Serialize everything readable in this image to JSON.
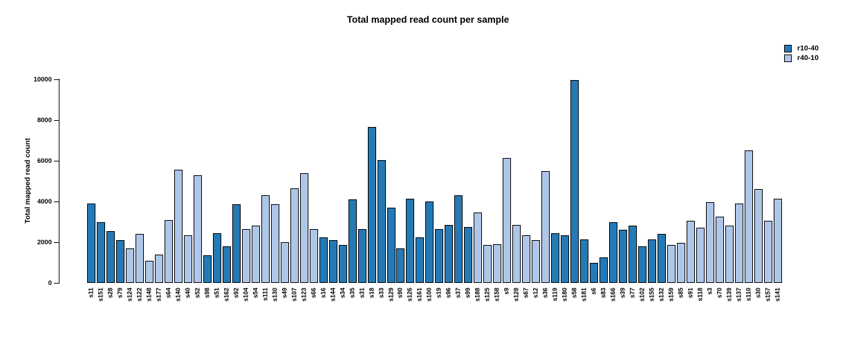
{
  "chart_data": {
    "type": "bar",
    "title": "Total mapped read count per sample",
    "xlabel": "",
    "ylabel": "Total mapped read count",
    "ylim": [
      0,
      10000
    ],
    "yticks": [
      0,
      2000,
      4000,
      6000,
      8000,
      10000
    ],
    "grid": false,
    "legend_position": "top-right",
    "series": [
      {
        "name": "r10-40",
        "color": "#2579b5"
      },
      {
        "name": "r40-10",
        "color": "#aec6e8"
      }
    ],
    "bars": [
      {
        "sample": "s11",
        "series": "r10-40",
        "value": 3900
      },
      {
        "sample": "s151",
        "series": "r10-40",
        "value": 3000
      },
      {
        "sample": "s28",
        "series": "r10-40",
        "value": 2550
      },
      {
        "sample": "s79",
        "series": "r10-40",
        "value": 2100
      },
      {
        "sample": "s124",
        "series": "r40-10",
        "value": 1700
      },
      {
        "sample": "s122",
        "series": "r40-10",
        "value": 2400
      },
      {
        "sample": "s148",
        "series": "r40-10",
        "value": 1100
      },
      {
        "sample": "s177",
        "series": "r40-10",
        "value": 1400
      },
      {
        "sample": "s64",
        "series": "r40-10",
        "value": 3100
      },
      {
        "sample": "s140",
        "series": "r40-10",
        "value": 5550
      },
      {
        "sample": "s40",
        "series": "r40-10",
        "value": 2350
      },
      {
        "sample": "s52",
        "series": "r40-10",
        "value": 5300
      },
      {
        "sample": "s98",
        "series": "r10-40",
        "value": 1350
      },
      {
        "sample": "s51",
        "series": "r10-40",
        "value": 2450
      },
      {
        "sample": "s162",
        "series": "r10-40",
        "value": 1800
      },
      {
        "sample": "s92",
        "series": "r10-40",
        "value": 3850
      },
      {
        "sample": "s104",
        "series": "r40-10",
        "value": 2650
      },
      {
        "sample": "s54",
        "series": "r40-10",
        "value": 2800
      },
      {
        "sample": "s111",
        "series": "r40-10",
        "value": 4300
      },
      {
        "sample": "s130",
        "series": "r40-10",
        "value": 3850
      },
      {
        "sample": "s49",
        "series": "r40-10",
        "value": 2000
      },
      {
        "sample": "s107",
        "series": "r40-10",
        "value": 4650
      },
      {
        "sample": "s123",
        "series": "r40-10",
        "value": 5400
      },
      {
        "sample": "s66",
        "series": "r40-10",
        "value": 2650
      },
      {
        "sample": "s16",
        "series": "r10-40",
        "value": 2250
      },
      {
        "sample": "s144",
        "series": "r10-40",
        "value": 2100
      },
      {
        "sample": "s34",
        "series": "r10-40",
        "value": 1850
      },
      {
        "sample": "s35",
        "series": "r10-40",
        "value": 4100
      },
      {
        "sample": "s31",
        "series": "r10-40",
        "value": 2650
      },
      {
        "sample": "s18",
        "series": "r10-40",
        "value": 7650
      },
      {
        "sample": "s33",
        "series": "r10-40",
        "value": 6050
      },
      {
        "sample": "s129",
        "series": "r10-40",
        "value": 3700
      },
      {
        "sample": "s90",
        "series": "r10-40",
        "value": 1700
      },
      {
        "sample": "s126",
        "series": "r10-40",
        "value": 4150
      },
      {
        "sample": "s161",
        "series": "r10-40",
        "value": 2250
      },
      {
        "sample": "s100",
        "series": "r10-40",
        "value": 4000
      },
      {
        "sample": "s19",
        "series": "r10-40",
        "value": 2650
      },
      {
        "sample": "s96",
        "series": "r10-40",
        "value": 2850
      },
      {
        "sample": "s37",
        "series": "r10-40",
        "value": 4300
      },
      {
        "sample": "s99",
        "series": "r10-40",
        "value": 2750
      },
      {
        "sample": "s188",
        "series": "r40-10",
        "value": 3450
      },
      {
        "sample": "s125",
        "series": "r40-10",
        "value": 1850
      },
      {
        "sample": "s158",
        "series": "r40-10",
        "value": 1900
      },
      {
        "sample": "s9",
        "series": "r40-10",
        "value": 6150
      },
      {
        "sample": "s128",
        "series": "r40-10",
        "value": 2850
      },
      {
        "sample": "s67",
        "series": "r40-10",
        "value": 2350
      },
      {
        "sample": "s12",
        "series": "r40-10",
        "value": 2100
      },
      {
        "sample": "s36",
        "series": "r40-10",
        "value": 5500
      },
      {
        "sample": "s119",
        "series": "r10-40",
        "value": 2450
      },
      {
        "sample": "s180",
        "series": "r10-40",
        "value": 2350
      },
      {
        "sample": "s58",
        "series": "r10-40",
        "value": 9950
      },
      {
        "sample": "s181",
        "series": "r10-40",
        "value": 2150
      },
      {
        "sample": "s6",
        "series": "r10-40",
        "value": 1000
      },
      {
        "sample": "s83",
        "series": "r10-40",
        "value": 1250
      },
      {
        "sample": "s166",
        "series": "r10-40",
        "value": 3000
      },
      {
        "sample": "s39",
        "series": "r10-40",
        "value": 2600
      },
      {
        "sample": "s77",
        "series": "r10-40",
        "value": 2800
      },
      {
        "sample": "s102",
        "series": "r10-40",
        "value": 1800
      },
      {
        "sample": "s155",
        "series": "r10-40",
        "value": 2150
      },
      {
        "sample": "s132",
        "series": "r10-40",
        "value": 2400
      },
      {
        "sample": "s159",
        "series": "r40-10",
        "value": 1850
      },
      {
        "sample": "s85",
        "series": "r40-10",
        "value": 1950
      },
      {
        "sample": "s91",
        "series": "r40-10",
        "value": 3050
      },
      {
        "sample": "s118",
        "series": "r40-10",
        "value": 2700
      },
      {
        "sample": "s3",
        "series": "r40-10",
        "value": 3950
      },
      {
        "sample": "s70",
        "series": "r40-10",
        "value": 3250
      },
      {
        "sample": "s139",
        "series": "r40-10",
        "value": 2800
      },
      {
        "sample": "s137",
        "series": "r40-10",
        "value": 3900
      },
      {
        "sample": "s110",
        "series": "r40-10",
        "value": 6500
      },
      {
        "sample": "s30",
        "series": "r40-10",
        "value": 4600
      },
      {
        "sample": "s157",
        "series": "r40-10",
        "value": 3050
      },
      {
        "sample": "s141",
        "series": "r40-10",
        "value": 4150
      }
    ]
  }
}
